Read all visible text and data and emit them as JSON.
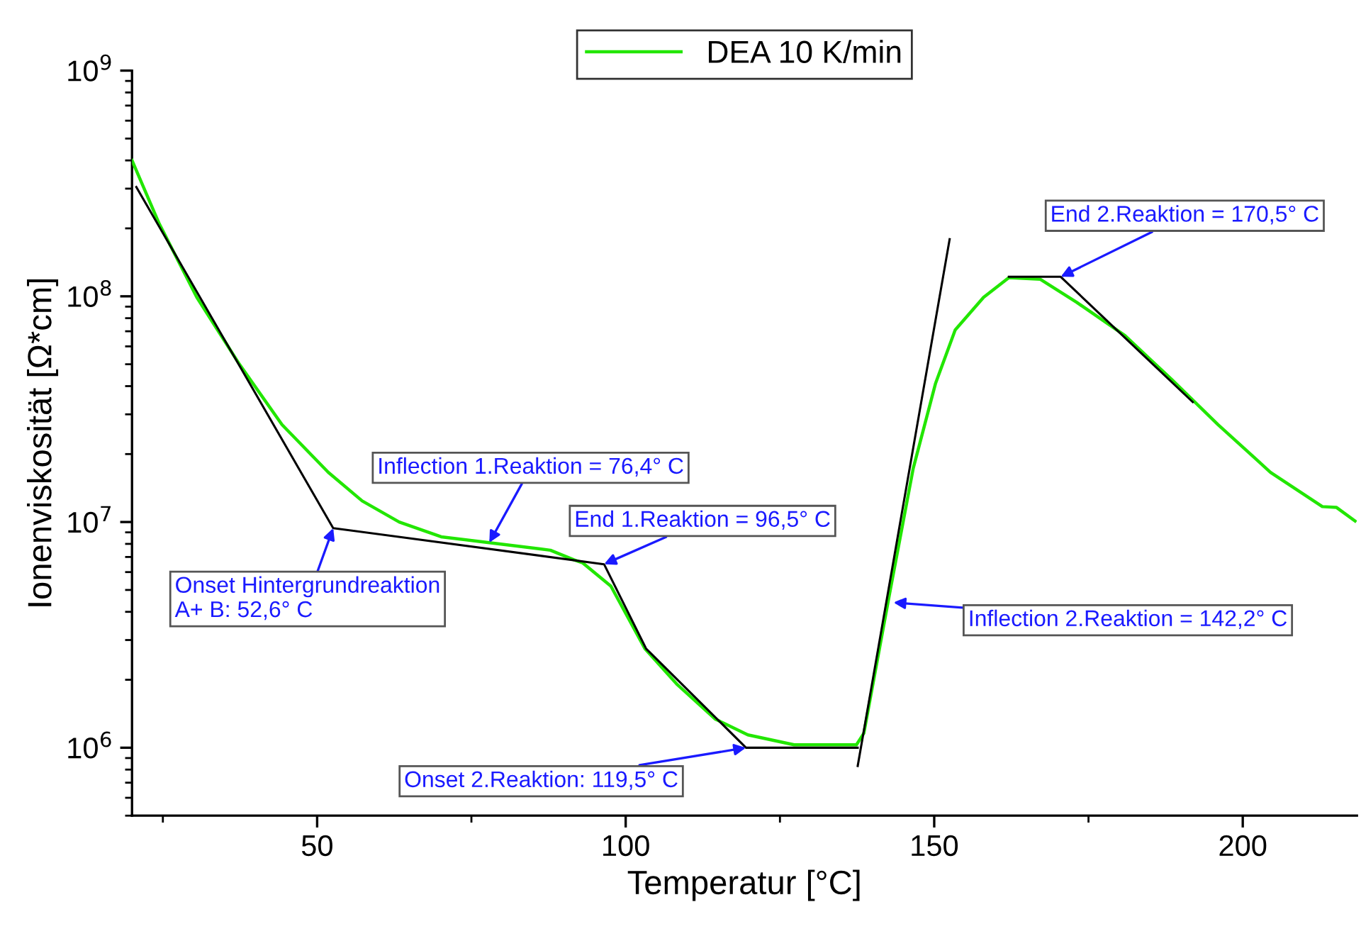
{
  "chart_data": {
    "type": "line",
    "xlabel": "Temperatur [°C]",
    "ylabel": "Ionenviskosität [Ω*cm]",
    "log": "y",
    "xlim": [
      20,
      218.5
    ],
    "xticks": [
      50,
      100,
      150,
      200
    ],
    "ylim": [
      500000,
      1000000000
    ],
    "yticks": [
      {
        "value": 1000000,
        "label": "10$^{6}$"
      },
      {
        "value": 10000000,
        "label": "10$^{7}$"
      },
      {
        "value": 100000000,
        "label": "10$^{8}$"
      },
      {
        "value": 1000000000,
        "label": "10$^{9}$"
      }
    ],
    "legend": "top",
    "grid": false,
    "series": [
      {
        "name": "DEA 10 K/min",
        "color": "#22e600",
        "x": [
          20,
          24.4,
          30.5,
          37.4,
          44.3,
          51.8,
          57.3,
          63.3,
          70.1,
          77.9,
          87.8,
          91.6,
          93.0,
          97.6,
          103.1,
          108.4,
          114.5,
          119.8,
          127.3,
          137.4,
          138.6,
          142.7,
          146.6,
          150.2,
          153.4,
          158.0,
          162.1,
          167.2,
          173.1,
          180.9,
          188.4,
          196.0,
          204.5,
          212.9,
          215.2,
          218.2
        ],
        "values": [
          400000000,
          210000000,
          99000000,
          50000000,
          27000000,
          16600000,
          12400000,
          10000000,
          8600000,
          8100000,
          7500000,
          6800000,
          6600000,
          5200000,
          2750000,
          1900000,
          1340000,
          1140000,
          1030000,
          1030000,
          1160000,
          4700000,
          17300000,
          41000000,
          71000000,
          99000000,
          121000000,
          119000000,
          94000000,
          67000000,
          43000000,
          27000000,
          16600000,
          11700000,
          11600000,
          10100000
        ]
      },
      {
        "color": "#000000",
        "x": [
          20.7,
          52.6,
          96.5,
          103.3,
          119.5,
          137.6
        ],
        "values": [
          305000000,
          9400000,
          6500000,
          2750000,
          1000000,
          1000000
        ]
      },
      {
        "color": "#000000",
        "x": [
          137.6,
          152.5
        ],
        "values": [
          830000,
          179000000
        ]
      },
      {
        "color": "#000000",
        "x": [
          162.1,
          170.5,
          191.9
        ],
        "values": [
          122000000,
          122000000,
          34000000
        ]
      }
    ],
    "annotations": [
      {
        "text": "Onset Hintergrundreaktion\nA+ B: 52,6° C",
        "x": 52.6,
        "y": 9400000
      },
      {
        "text": "Inflection 1.Reaktion = 76,4° C",
        "x": 77.9,
        "y": 8100000
      },
      {
        "text": "End 1.Reaktion = 96,5° C",
        "x": 96.5,
        "y": 6500000
      },
      {
        "text": "Onset 2.Reaktion: 119,5° C",
        "x": 119.5,
        "y": 1000000
      },
      {
        "text": "Inflection 2.Reaktion = 142,2° C",
        "x": 143.4,
        "y": 4400000
      },
      {
        "text": "End 2.Reaktion = 170,5° C",
        "x": 170.5,
        "y": 122000000
      }
    ]
  }
}
